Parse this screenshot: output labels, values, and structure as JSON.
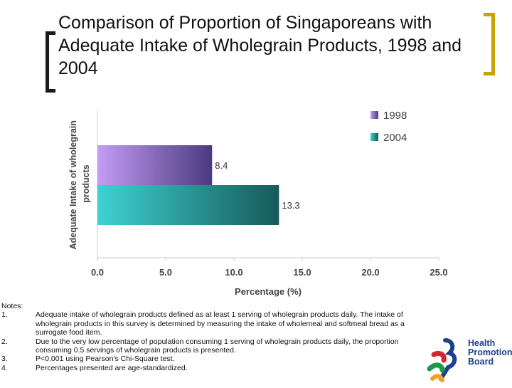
{
  "title": "Comparison of Proportion of Singaporeans with Adequate Intake of Wholegrain Products, 1998 and 2004",
  "chart_data": {
    "type": "bar",
    "orientation": "horizontal",
    "xlabel": "Percentage (%)",
    "ylabel": "Adequate Intake of wholegrain products",
    "xlim": [
      0,
      25
    ],
    "x_ticks": [
      "0.0",
      "5.0",
      "10.0",
      "15.0",
      "20.0",
      "25.0"
    ],
    "grid": false,
    "legend_position": "top-right",
    "series": [
      {
        "name": "1998",
        "values": [
          8.4
        ],
        "label": "8.4",
        "colors": [
          "#c49cf5",
          "#4a3a80"
        ]
      },
      {
        "name": "2004",
        "values": [
          13.3
        ],
        "label": "13.3",
        "colors": [
          "#3ed2d2",
          "#165a5a"
        ]
      }
    ]
  },
  "notes": {
    "heading": "Notes:",
    "items": [
      {
        "num": "1.",
        "text": "Adequate intake of wholegrain products defined as at least 1 serving of wholegrain products daily. The intake of wholegrain products in this survey is determined by measuring the intake of wholemeal and softmeal bread as a surrogate food item."
      },
      {
        "num": "2.",
        "text": "Due to the very low percentage of population consuming 1 serving of wholegrain products daily, the proportion consuming 0.5 servings of wholegrain products is presented."
      },
      {
        "num": "3.",
        "text": "P<0.001 using Pearson's Chi-Square test."
      },
      {
        "num": "4.",
        "text": "Percentages presented are age-standardized."
      }
    ]
  },
  "logo": {
    "line1": "Health",
    "line2": "Promotion",
    "line3": "Board"
  }
}
